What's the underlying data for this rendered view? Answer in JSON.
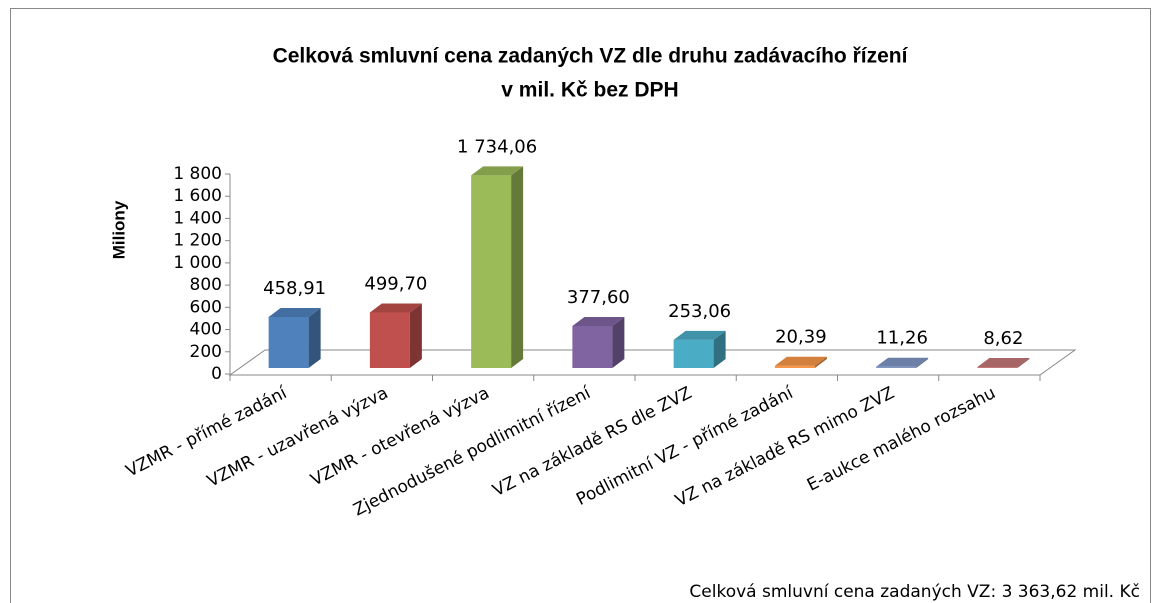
{
  "chart_data": {
    "type": "bar3d",
    "title": [
      "Celková smluvní cena zadaných VZ dle druhu zadávacího řízení",
      "v mil. Kč bez DPH"
    ],
    "ylabel": "Miliony",
    "categories": [
      "VZMR - přímé zadání",
      "VZMR - uzavřená výzva",
      "VZMR  - otevřená výzva",
      "Zjednodušené podlimitní řízení",
      "VZ na základě RS dle ZVZ",
      "Podlimitní VZ - přímé zadání",
      "VZ na základě RS mimo ZVZ",
      "E-aukce malého rozsahu"
    ],
    "values": [
      458.91,
      499.7,
      1734.06,
      377.6,
      253.06,
      20.39,
      11.26,
      8.62
    ],
    "value_labels": [
      "458,91",
      "499,70",
      "1 734,06",
      "377,60",
      "253,06",
      "20,39",
      "11,26",
      "8,62"
    ],
    "colors": [
      "#4f81bd",
      "#c0504d",
      "#9bbb59",
      "#8064a2",
      "#4bacc6",
      "#f79646",
      "#7f96c4",
      "#c57878"
    ],
    "ylim": [
      0,
      1800
    ],
    "yticks": [
      0,
      200,
      400,
      600,
      800,
      {
        "value": 1000,
        "label": "1 000"
      },
      {
        "value": 1200,
        "label": "1 200"
      },
      {
        "value": 1400,
        "label": "1 400"
      },
      {
        "value": 1600,
        "label": "1 600"
      },
      {
        "value": 1800,
        "label": "1 800"
      }
    ],
    "annotation": "Celková smluvní cena zadaných VZ: 3 363,62 mil. Kč"
  }
}
